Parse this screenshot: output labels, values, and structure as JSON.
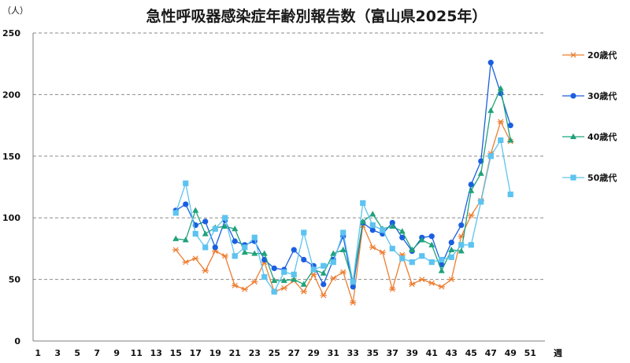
{
  "chart_data": {
    "type": "line",
    "title": "急性呼吸器感染症年齢別報告数（富山県2025年）",
    "ylabel": "（人）",
    "xlabel": "週",
    "ylim": [
      0,
      250
    ],
    "yticks": [
      0,
      50,
      100,
      150,
      200,
      250
    ],
    "xlim": [
      1,
      52
    ],
    "xticks": [
      1,
      3,
      5,
      7,
      9,
      11,
      13,
      15,
      17,
      19,
      21,
      23,
      25,
      27,
      29,
      31,
      33,
      35,
      37,
      39,
      41,
      43,
      45,
      47,
      49,
      51
    ],
    "grid": "horizontal-dashed",
    "legend_position": "right",
    "weeks": [
      15,
      16,
      17,
      18,
      19,
      20,
      21,
      22,
      23,
      24,
      25,
      26,
      27,
      28,
      29,
      30,
      31,
      32,
      33,
      34,
      35,
      36,
      37,
      38,
      39,
      40,
      41,
      42,
      43,
      44,
      45,
      46,
      47,
      48,
      49
    ],
    "series": [
      {
        "name": "20歳代",
        "color": "#ED7D31",
        "marker": "asterisk",
        "values": [
          74,
          64,
          67,
          57,
          73,
          69,
          45,
          42,
          48,
          64,
          40,
          43,
          49,
          40,
          54,
          37,
          51,
          56,
          31,
          94,
          76,
          72,
          42,
          70,
          46,
          50,
          47,
          44,
          50,
          85,
          102,
          114,
          152,
          178,
          162
        ]
      },
      {
        "name": "30歳代",
        "color": "#1A5FE0",
        "marker": "circle",
        "values": [
          106,
          111,
          94,
          97,
          76,
          98,
          81,
          78,
          81,
          66,
          59,
          58,
          74,
          66,
          61,
          46,
          66,
          85,
          44,
          96,
          90,
          87,
          96,
          84,
          73,
          84,
          85,
          62,
          80,
          94,
          127,
          146,
          226,
          201,
          175
        ]
      },
      {
        "name": "40歳代",
        "color": "#1FA27A",
        "marker": "triangle",
        "values": [
          83,
          82,
          106,
          87,
          92,
          93,
          91,
          72,
          71,
          71,
          49,
          49,
          50,
          46,
          58,
          55,
          71,
          74,
          48,
          97,
          103,
          91,
          93,
          89,
          74,
          82,
          78,
          57,
          74,
          73,
          122,
          136,
          187,
          205,
          163
        ]
      },
      {
        "name": "50歳代",
        "color": "#5DC3F0",
        "marker": "square",
        "values": [
          104,
          128,
          87,
          76,
          91,
          100,
          69,
          76,
          84,
          52,
          40,
          56,
          54,
          88,
          58,
          61,
          64,
          88,
          48,
          112,
          94,
          90,
          75,
          67,
          64,
          69,
          64,
          66,
          68,
          78,
          78,
          113,
          150,
          163,
          119
        ]
      }
    ]
  }
}
